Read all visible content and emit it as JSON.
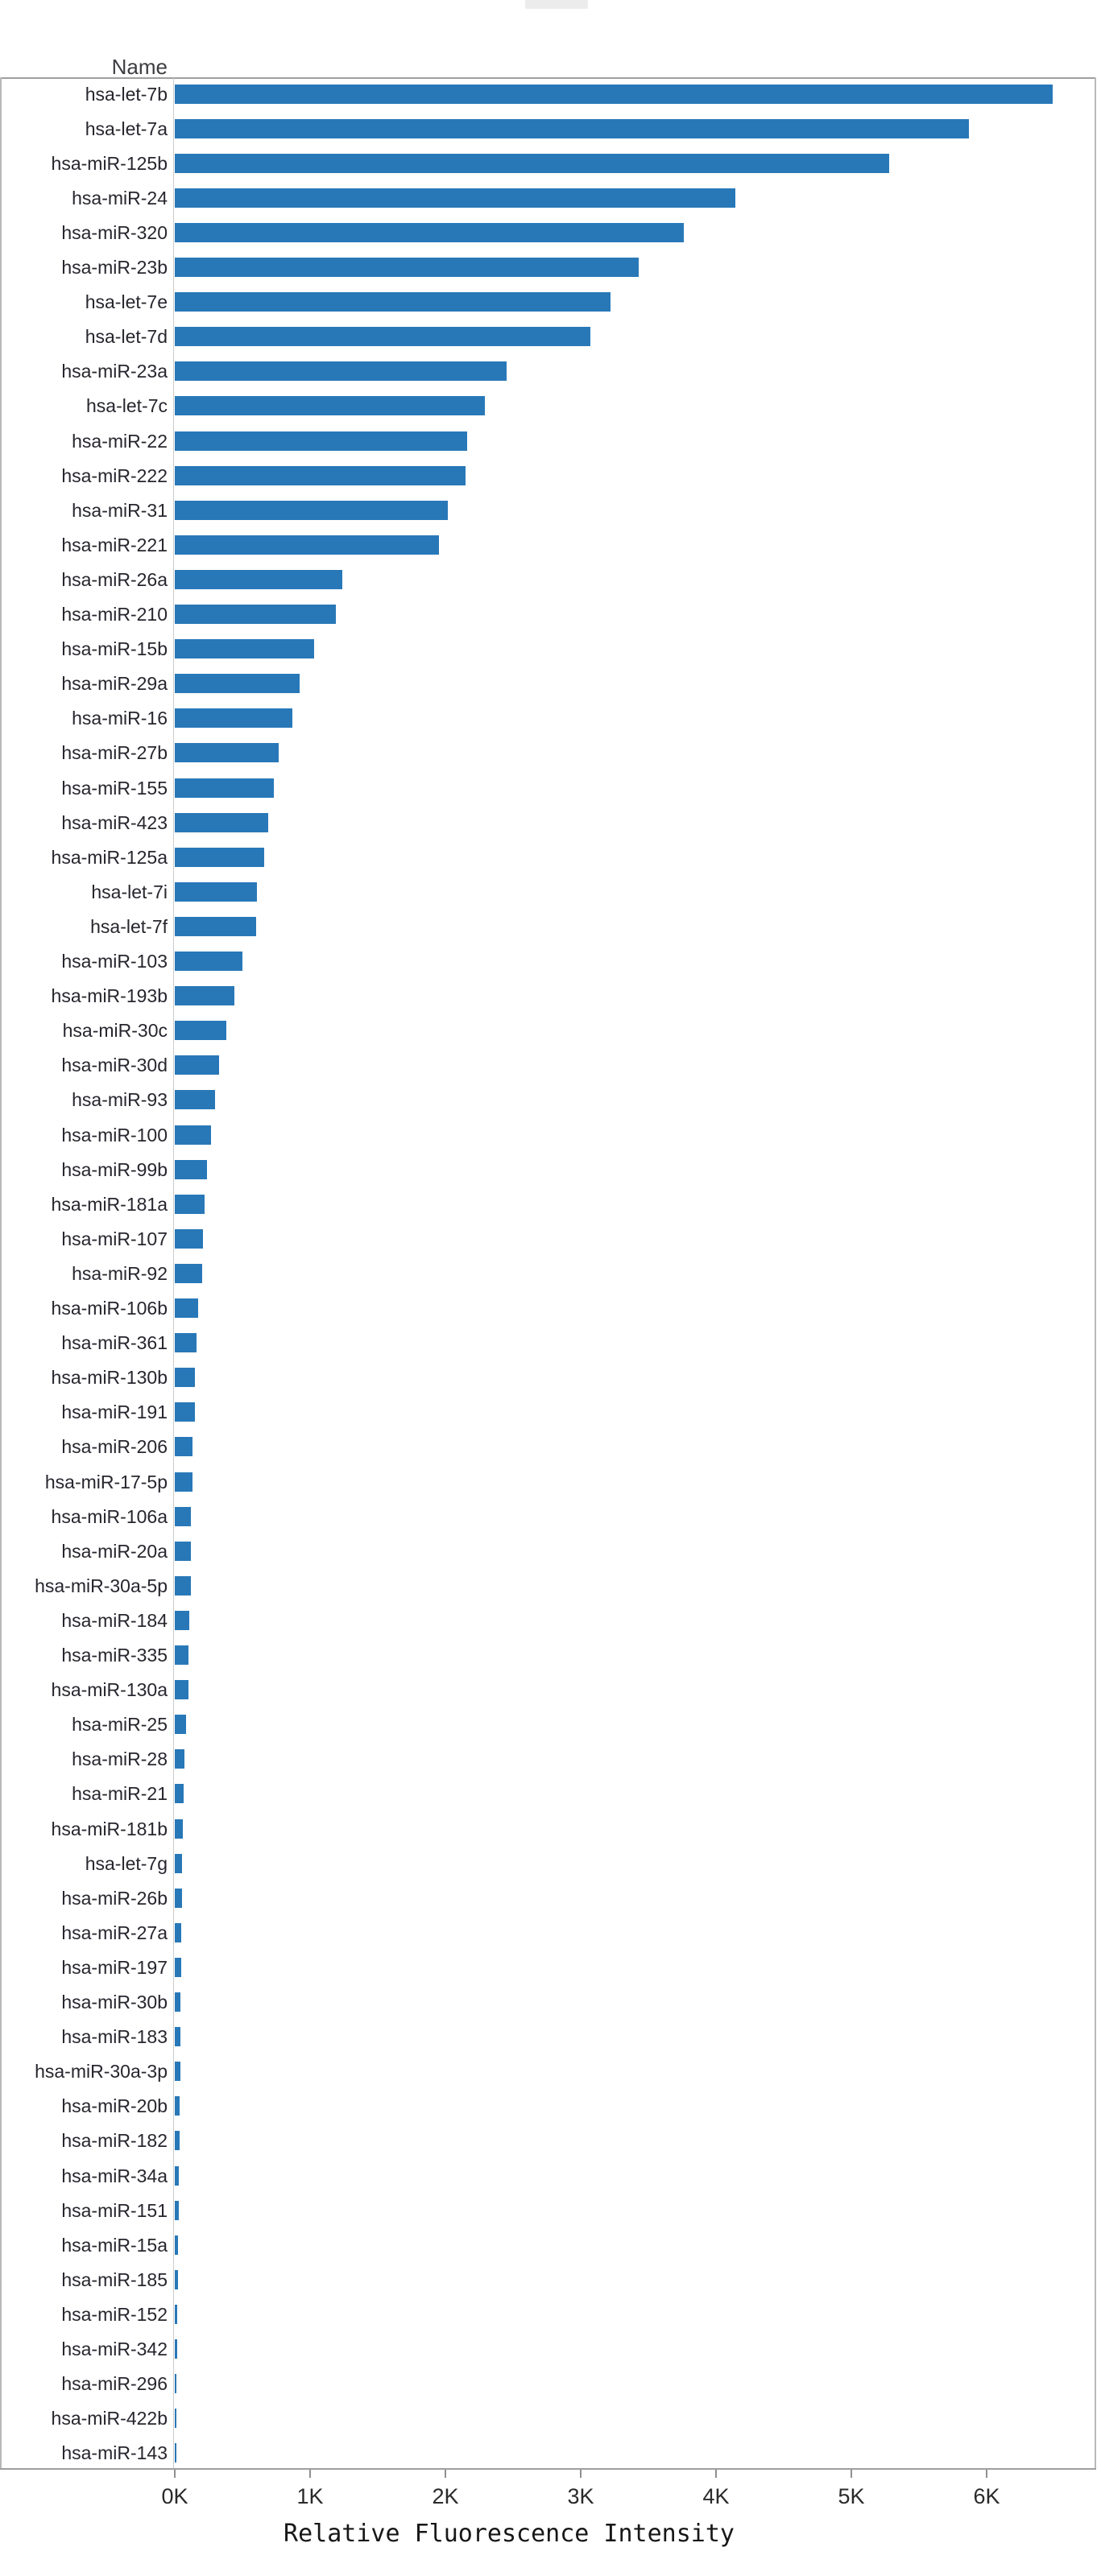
{
  "colors": {
    "bar": "#2878b8",
    "frame": "#9f9f9f",
    "label_text": "#26262e",
    "tick_text": "#2a2a2a"
  },
  "header": {
    "name_column_label": "Name"
  },
  "axis": {
    "title": "Relative Fluorescence Intensity",
    "tick_labels": [
      "0K",
      "1K",
      "2K",
      "3K",
      "4K",
      "5K",
      "6K"
    ]
  },
  "chart_data": {
    "type": "bar",
    "orientation": "horizontal",
    "title": "",
    "xlabel": "Relative Fluorescence Intensity",
    "ylabel": "Name",
    "xlim": [
      0,
      6.8
    ],
    "x_unit": "K (thousands, relative fluorescence intensity)",
    "grid": false,
    "legend": null,
    "categories": [
      "hsa-let-7b",
      "hsa-let-7a",
      "hsa-miR-125b",
      "hsa-miR-24",
      "hsa-miR-320",
      "hsa-miR-23b",
      "hsa-let-7e",
      "hsa-let-7d",
      "hsa-miR-23a",
      "hsa-let-7c",
      "hsa-miR-22",
      "hsa-miR-222",
      "hsa-miR-31",
      "hsa-miR-221",
      "hsa-miR-26a",
      "hsa-miR-210",
      "hsa-miR-15b",
      "hsa-miR-29a",
      "hsa-miR-16",
      "hsa-miR-27b",
      "hsa-miR-155",
      "hsa-miR-423",
      "hsa-miR-125a",
      "hsa-let-7i",
      "hsa-let-7f",
      "hsa-miR-103",
      "hsa-miR-193b",
      "hsa-miR-30c",
      "hsa-miR-30d",
      "hsa-miR-93",
      "hsa-miR-100",
      "hsa-miR-99b",
      "hsa-miR-181a",
      "hsa-miR-107",
      "hsa-miR-92",
      "hsa-miR-106b",
      "hsa-miR-361",
      "hsa-miR-130b",
      "hsa-miR-191",
      "hsa-miR-206",
      "hsa-miR-17-5p",
      "hsa-miR-106a",
      "hsa-miR-20a",
      "hsa-miR-30a-5p",
      "hsa-miR-184",
      "hsa-miR-335",
      "hsa-miR-130a",
      "hsa-miR-25",
      "hsa-miR-28",
      "hsa-miR-21",
      "hsa-miR-181b",
      "hsa-let-7g",
      "hsa-miR-26b",
      "hsa-miR-27a",
      "hsa-miR-197",
      "hsa-miR-30b",
      "hsa-miR-183",
      "hsa-miR-30a-3p",
      "hsa-miR-20b",
      "hsa-miR-182",
      "hsa-miR-34a",
      "hsa-miR-151",
      "hsa-miR-15a",
      "hsa-miR-185",
      "hsa-miR-152",
      "hsa-miR-342",
      "hsa-miR-296",
      "hsa-miR-422b",
      "hsa-miR-143"
    ],
    "values_k": [
      6.49,
      5.87,
      5.28,
      4.14,
      3.76,
      3.43,
      3.22,
      3.07,
      2.45,
      2.29,
      2.16,
      2.15,
      2.02,
      1.95,
      1.24,
      1.19,
      1.03,
      0.92,
      0.87,
      0.77,
      0.73,
      0.69,
      0.66,
      0.61,
      0.6,
      0.5,
      0.44,
      0.38,
      0.33,
      0.3,
      0.27,
      0.24,
      0.22,
      0.21,
      0.2,
      0.17,
      0.16,
      0.15,
      0.15,
      0.13,
      0.13,
      0.12,
      0.12,
      0.12,
      0.105,
      0.1,
      0.1,
      0.085,
      0.07,
      0.065,
      0.06,
      0.055,
      0.055,
      0.05,
      0.045,
      0.04,
      0.04,
      0.04,
      0.038,
      0.035,
      0.03,
      0.027,
      0.024,
      0.021,
      0.018,
      0.015,
      0.012,
      0.01,
      0.008
    ]
  }
}
